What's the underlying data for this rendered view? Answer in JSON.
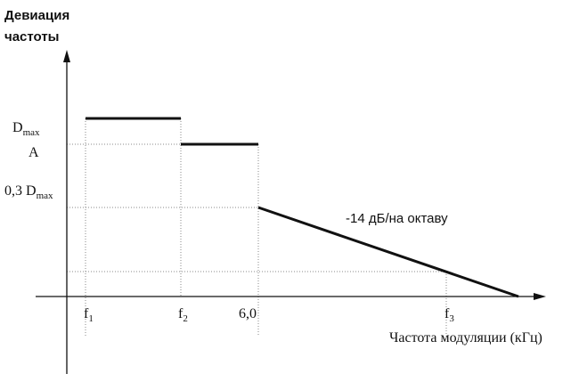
{
  "y_axis": {
    "title_lines": [
      "Девиация",
      "частоты"
    ]
  },
  "y_labels": [
    {
      "main": "D",
      "sub": "max"
    },
    {
      "main": "A"
    },
    {
      "main": "0,3 D",
      "sub": "max"
    }
  ],
  "x_labels": [
    {
      "main": "f",
      "sub": "1"
    },
    {
      "main": "f",
      "sub": "2"
    },
    {
      "main": "6,0"
    },
    {
      "main": "f",
      "sub": "3"
    }
  ],
  "slope_label": "-14 дБ/на октаву",
  "x_axis_title": "Частота модуляции (кГц)"
}
